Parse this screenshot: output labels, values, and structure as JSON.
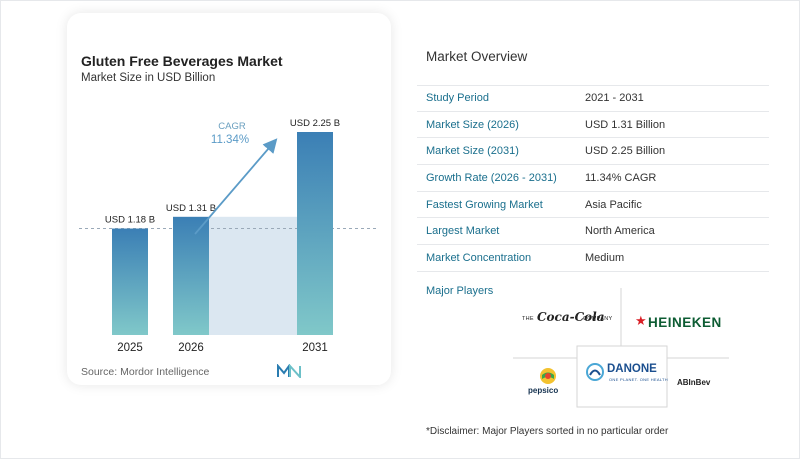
{
  "chart": {
    "title": "Gluten Free Beverages Market",
    "subtitle": "Market Size in USD Billion",
    "source": "Source:  Mordor Intelligence",
    "cagr_label": "CAGR",
    "cagr_value": "11.34%"
  },
  "chart_data": {
    "type": "bar",
    "title": "Gluten Free Beverages Market",
    "subtitle": "Market Size in USD Billion",
    "categories": [
      "2025",
      "2026",
      "2031"
    ],
    "values": [
      1.18,
      1.31,
      2.25
    ],
    "data_labels": [
      "USD 1.18 B",
      "USD 1.31 B",
      "USD 2.25 B"
    ],
    "ylim": [
      0,
      2.25
    ],
    "annotation": {
      "text": "CAGR",
      "value": "11.34%"
    },
    "colors": {
      "bar_top": "#3b7fb5",
      "bar_bottom": "#80c8c9",
      "shade": "#dbe7f1",
      "arrow": "#5b9bc7"
    }
  },
  "overview": {
    "title": "Market Overview",
    "rows": [
      {
        "label": "Study Period",
        "value": "2021 - 2031"
      },
      {
        "label": "Market Size (2026)",
        "value": "USD 1.31 Billion"
      },
      {
        "label": "Market Size (2031)",
        "value": "USD 2.25 Billion"
      },
      {
        "label": "Growth Rate (2026 - 2031)",
        "value": "11.34% CAGR"
      },
      {
        "label": "Fastest Growing Market",
        "value": "Asia Pacific"
      },
      {
        "label": "Largest Market",
        "value": "North America"
      },
      {
        "label": "Market Concentration",
        "value": "Medium"
      }
    ]
  },
  "players": {
    "title": "Major Players",
    "logos": {
      "coca_cola_the": "THE",
      "coca_cola_script": "Coca-Cola",
      "coca_cola_company": "COMPANY",
      "heineken": "HEINEKEN",
      "danone": "DANONE",
      "danone_sub": "ONE PLANET. ONE HEALTH",
      "pepsico": "pepsico",
      "abinbev": "ABInBev"
    }
  },
  "disclaimer": "*Disclaimer: Major Players sorted in no particular order"
}
